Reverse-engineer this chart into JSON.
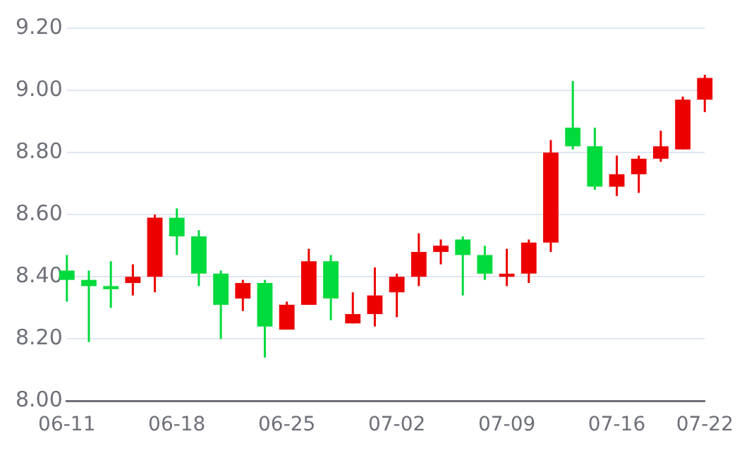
{
  "chart_data": {
    "type": "candlestick",
    "categories": [
      "06-11",
      null,
      null,
      null,
      null,
      "06-18",
      null,
      null,
      null,
      null,
      "06-25",
      null,
      null,
      null,
      null,
      "07-02",
      null,
      null,
      null,
      null,
      "07-09",
      null,
      null,
      null,
      null,
      "07-16",
      null,
      null,
      null,
      "07-22"
    ],
    "ohlc": [
      [
        8.42,
        8.47,
        8.32,
        8.39
      ],
      [
        8.39,
        8.42,
        8.19,
        8.37
      ],
      [
        8.37,
        8.45,
        8.3,
        8.36
      ],
      [
        8.38,
        8.44,
        8.34,
        8.4
      ],
      [
        8.4,
        8.6,
        8.35,
        8.59
      ],
      [
        8.59,
        8.62,
        8.47,
        8.53
      ],
      [
        8.53,
        8.55,
        8.37,
        8.41
      ],
      [
        8.41,
        8.42,
        8.2,
        8.31
      ],
      [
        8.33,
        8.39,
        8.29,
        8.38
      ],
      [
        8.38,
        8.39,
        8.14,
        8.24
      ],
      [
        8.23,
        8.32,
        8.23,
        8.31
      ],
      [
        8.31,
        8.49,
        8.31,
        8.45
      ],
      [
        8.45,
        8.47,
        8.26,
        8.33
      ],
      [
        8.25,
        8.35,
        8.25,
        8.28
      ],
      [
        8.28,
        8.43,
        8.24,
        8.34
      ],
      [
        8.35,
        8.41,
        8.27,
        8.4
      ],
      [
        8.4,
        8.54,
        8.37,
        8.48
      ],
      [
        8.48,
        8.52,
        8.44,
        8.5
      ],
      [
        8.52,
        8.53,
        8.34,
        8.47
      ],
      [
        8.47,
        8.5,
        8.39,
        8.41
      ],
      [
        8.4,
        8.49,
        8.37,
        8.41
      ],
      [
        8.41,
        8.52,
        8.38,
        8.51
      ],
      [
        8.51,
        8.84,
        8.48,
        8.8
      ],
      [
        8.88,
        9.03,
        8.81,
        8.82
      ],
      [
        8.82,
        8.88,
        8.68,
        8.69
      ],
      [
        8.69,
        8.79,
        8.66,
        8.73
      ],
      [
        8.73,
        8.79,
        8.67,
        8.78
      ],
      [
        8.78,
        8.87,
        8.77,
        8.82
      ],
      [
        8.81,
        8.98,
        8.81,
        8.97
      ],
      [
        8.97,
        9.05,
        8.93,
        9.04
      ]
    ],
    "colors": [
      "#00da3c",
      "#00da3c",
      "#00da3c",
      "#ec0000",
      "#ec0000",
      "#00da3c",
      "#00da3c",
      "#00da3c",
      "#ec0000",
      "#00da3c",
      "#ec0000",
      "#ec0000",
      "#00da3c",
      "#ec0000",
      "#ec0000",
      "#ec0000",
      "#ec0000",
      "#ec0000",
      "#00da3c",
      "#00da3c",
      "#ec0000",
      "#ec0000",
      "#ec0000",
      "#00da3c",
      "#00da3c",
      "#ec0000",
      "#ec0000",
      "#ec0000",
      "#ec0000",
      "#ec0000"
    ],
    "ylim": [
      8.0,
      9.2
    ],
    "yticks": [
      {
        "value": 8.0,
        "label": "8.00"
      },
      {
        "value": 8.2,
        "label": "8.20"
      },
      {
        "value": 8.4,
        "label": "8.40"
      },
      {
        "value": 8.6,
        "label": "8.60"
      },
      {
        "value": 8.8,
        "label": "8.80"
      },
      {
        "value": 9.0,
        "label": "9.00"
      },
      {
        "value": 9.2,
        "label": "9.20"
      }
    ],
    "grid": "y",
    "legend": false
  }
}
